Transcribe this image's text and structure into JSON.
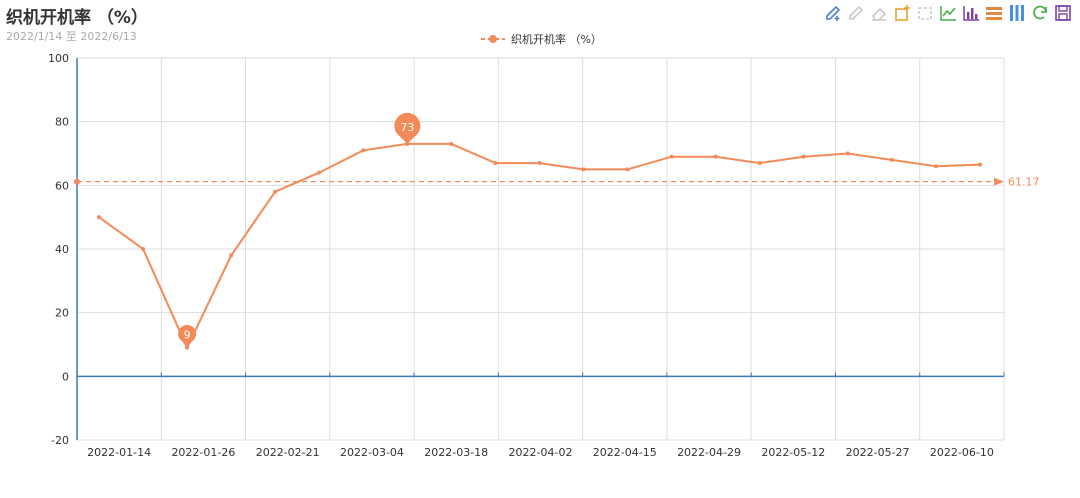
{
  "header": {
    "title": "织机开机率 （%）",
    "subtitle": "2022/1/14 至 2022/6/13"
  },
  "toolbox": [
    {
      "name": "pencil-add-icon",
      "color": "#4a7fd4"
    },
    {
      "name": "pencil-icon",
      "color": "#c8c8c8"
    },
    {
      "name": "eraser-icon",
      "color": "#c8c8c8"
    },
    {
      "name": "rect-add-icon",
      "color": "#e8a33a"
    },
    {
      "name": "rect-icon",
      "color": "#c8c8c8"
    },
    {
      "name": "line-chart-icon",
      "color": "#4caf50"
    },
    {
      "name": "bar-chart-icon",
      "color": "#7b3fa8"
    },
    {
      "name": "stack-icon",
      "color": "#e08a3c"
    },
    {
      "name": "tiled-icon",
      "color": "#4a90e2"
    },
    {
      "name": "restore-icon",
      "color": "#4caf50"
    },
    {
      "name": "save-icon",
      "color": "#7b3fa8"
    }
  ],
  "chart_data": {
    "type": "line",
    "title": "织机开机率 （%）",
    "subtitle": "2022/1/14 至 2022/6/13",
    "xlabel": "",
    "ylabel": "",
    "ylim": [
      -20,
      100
    ],
    "yticks": [
      -20,
      0,
      20,
      40,
      60,
      80,
      100
    ],
    "x_tick_labels": [
      "2022-01-14",
      "2022-01-26",
      "2022-02-21",
      "2022-03-04",
      "2022-03-18",
      "2022-04-02",
      "2022-04-15",
      "2022-04-29",
      "2022-05-12",
      "2022-05-27",
      "2022-06-10"
    ],
    "grid": true,
    "legend": {
      "position": "top-center"
    },
    "colors": {
      "series": "#f48a5a",
      "axis": "#3a7bbf",
      "grid": "#dddddd"
    },
    "series": [
      {
        "name": "织机开机率 （%）",
        "values": [
          50,
          40,
          9,
          38,
          58,
          64,
          71,
          73,
          73,
          67,
          67,
          65,
          65,
          69,
          69,
          67,
          69,
          70,
          68,
          66,
          66.5
        ]
      }
    ],
    "mark_points": [
      {
        "label": "73",
        "type": "max",
        "index": 7,
        "value": 73
      },
      {
        "label": "9",
        "type": "min",
        "index": 2,
        "value": 9
      }
    ],
    "mark_line": {
      "label": "61.17",
      "type": "average",
      "value": 61.17
    }
  }
}
